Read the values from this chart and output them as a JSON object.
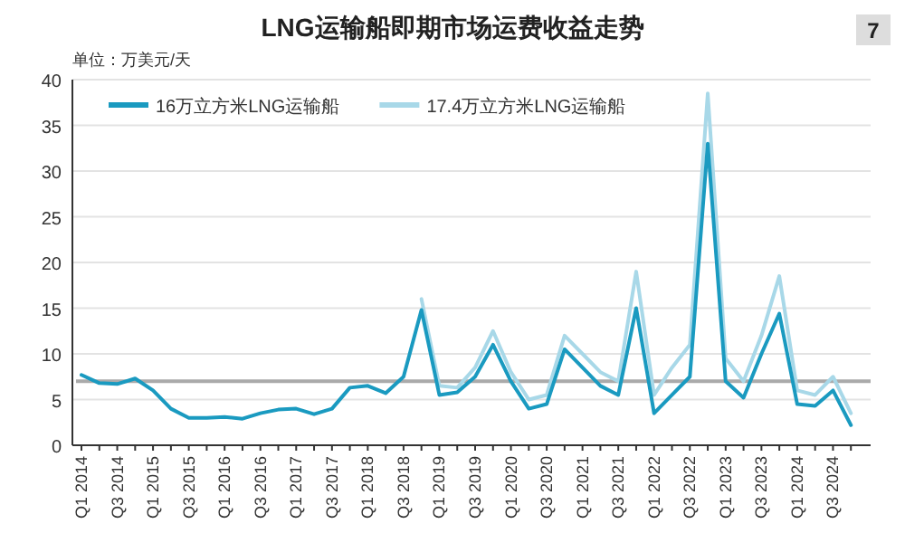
{
  "chart_data": {
    "type": "line",
    "title": "LNG运输船即期市场运费收益走势",
    "ylabel": "单位：万美元/天",
    "annotations": [
      "7"
    ],
    "categories": [
      "Q1 2014",
      null,
      "Q3 2014",
      null,
      "Q1 2015",
      null,
      "Q3 2015",
      null,
      "Q1 2016",
      null,
      "Q3 2016",
      null,
      "Q1 2017",
      null,
      "Q3 2017",
      null,
      "Q1 2018",
      null,
      "Q3 2018",
      null,
      "Q1 2019",
      null,
      "Q3 2019",
      null,
      "Q1 2020",
      null,
      "Q3 2020",
      null,
      "Q1 2021",
      null,
      "Q3 2021",
      null,
      "Q1 2022",
      null,
      "Q3 2022",
      null,
      "Q1 2023",
      null,
      "Q3 2023",
      null,
      "Q1 2024",
      null,
      "Q3 2024",
      null
    ],
    "series": [
      {
        "name": "16万立方米LNG运输船",
        "color": "#1a9ac0",
        "values": [
          7.7,
          6.8,
          6.7,
          7.3,
          6.0,
          4.0,
          3.0,
          3.0,
          3.1,
          2.9,
          3.5,
          3.9,
          4.0,
          3.4,
          4.0,
          6.3,
          6.5,
          5.7,
          7.5,
          14.8,
          5.5,
          5.8,
          7.5,
          11.0,
          7.0,
          4.0,
          4.5,
          10.5,
          8.5,
          6.5,
          5.5,
          15.0,
          3.5,
          5.5,
          7.5,
          33.0,
          7.0,
          5.2,
          10.0,
          14.4,
          4.5,
          4.3,
          6.0,
          2.2
        ]
      },
      {
        "name": "17.4万立方米LNG运输船",
        "color": "#a8d8e8",
        "values": [
          null,
          null,
          null,
          null,
          null,
          null,
          null,
          null,
          null,
          null,
          null,
          null,
          null,
          null,
          null,
          null,
          null,
          null,
          null,
          16.0,
          6.5,
          6.3,
          8.5,
          12.5,
          8.0,
          5.0,
          5.5,
          12.0,
          10.0,
          8.0,
          7.0,
          19.0,
          5.5,
          8.5,
          11.0,
          38.5,
          9.5,
          7.0,
          12.0,
          18.5,
          6.0,
          5.5,
          7.5,
          3.5
        ]
      }
    ],
    "ylim": [
      0,
      40
    ],
    "yticks": [
      0,
      5,
      10,
      15,
      20,
      25,
      30,
      35,
      40
    ],
    "grid": "y",
    "legend": "top left",
    "ref_lines": [
      {
        "axis": "y",
        "value": 7,
        "color": "#aaaaaa"
      }
    ]
  }
}
